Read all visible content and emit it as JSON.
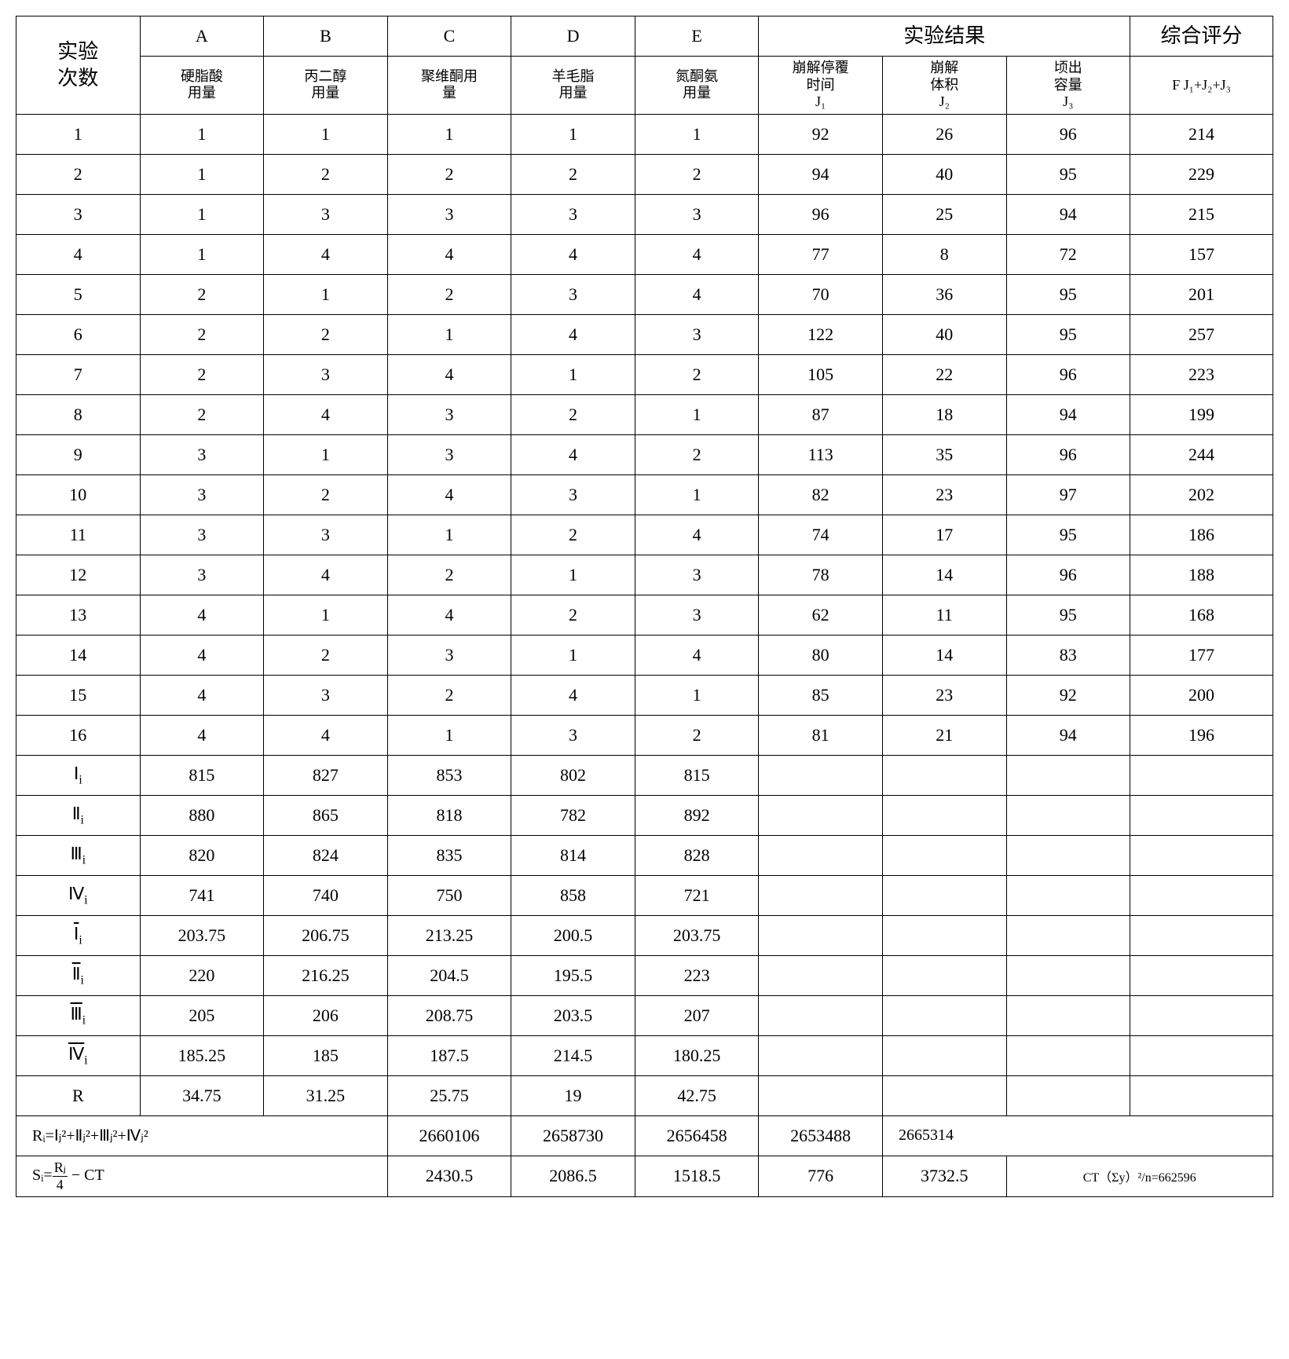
{
  "headers": {
    "run": "实验\n次数",
    "factors": [
      "A",
      "B",
      "C",
      "D",
      "E"
    ],
    "factor_subs": [
      "硬脂酸\n用量",
      "丙二醇\n用量",
      "聚维酮用\n量",
      "羊毛脂\n用量",
      "氮酮氨\n用量"
    ],
    "results_title": "实验结果",
    "result_subs": [
      "崩解停覆\n时间\nJ₁",
      "崩解\n体积\nJ₂",
      "顷出\n容量\nJ₃"
    ],
    "score_title": "综合评分",
    "score_sub": "F J₁+J₂+J₃"
  },
  "rows": [
    {
      "run": "1",
      "f": [
        "1",
        "1",
        "1",
        "1",
        "1"
      ],
      "r": [
        "92",
        "26",
        "96"
      ],
      "score": "214"
    },
    {
      "run": "2",
      "f": [
        "1",
        "2",
        "2",
        "2",
        "2"
      ],
      "r": [
        "94",
        "40",
        "95"
      ],
      "score": "229"
    },
    {
      "run": "3",
      "f": [
        "1",
        "3",
        "3",
        "3",
        "3"
      ],
      "r": [
        "96",
        "25",
        "94"
      ],
      "score": "215"
    },
    {
      "run": "4",
      "f": [
        "1",
        "4",
        "4",
        "4",
        "4"
      ],
      "r": [
        "77",
        "8",
        "72"
      ],
      "score": "157"
    },
    {
      "run": "5",
      "f": [
        "2",
        "1",
        "2",
        "3",
        "4"
      ],
      "r": [
        "70",
        "36",
        "95"
      ],
      "score": "201"
    },
    {
      "run": "6",
      "f": [
        "2",
        "2",
        "1",
        "4",
        "3"
      ],
      "r": [
        "122",
        "40",
        "95"
      ],
      "score": "257"
    },
    {
      "run": "7",
      "f": [
        "2",
        "3",
        "4",
        "1",
        "2"
      ],
      "r": [
        "105",
        "22",
        "96"
      ],
      "score": "223"
    },
    {
      "run": "8",
      "f": [
        "2",
        "4",
        "3",
        "2",
        "1"
      ],
      "r": [
        "87",
        "18",
        "94"
      ],
      "score": "199"
    },
    {
      "run": "9",
      "f": [
        "3",
        "1",
        "3",
        "4",
        "2"
      ],
      "r": [
        "113",
        "35",
        "96"
      ],
      "score": "244"
    },
    {
      "run": "10",
      "f": [
        "3",
        "2",
        "4",
        "3",
        "1"
      ],
      "r": [
        "82",
        "23",
        "97"
      ],
      "score": "202"
    },
    {
      "run": "11",
      "f": [
        "3",
        "3",
        "1",
        "2",
        "4"
      ],
      "r": [
        "74",
        "17",
        "95"
      ],
      "score": "186"
    },
    {
      "run": "12",
      "f": [
        "3",
        "4",
        "2",
        "1",
        "3"
      ],
      "r": [
        "78",
        "14",
        "96"
      ],
      "score": "188"
    },
    {
      "run": "13",
      "f": [
        "4",
        "1",
        "4",
        "2",
        "3"
      ],
      "r": [
        "62",
        "11",
        "95"
      ],
      "score": "168"
    },
    {
      "run": "14",
      "f": [
        "4",
        "2",
        "3",
        "1",
        "4"
      ],
      "r": [
        "80",
        "14",
        "83"
      ],
      "score": "177"
    },
    {
      "run": "15",
      "f": [
        "4",
        "3",
        "2",
        "4",
        "1"
      ],
      "r": [
        "85",
        "23",
        "92"
      ],
      "score": "200"
    },
    {
      "run": "16",
      "f": [
        "4",
        "4",
        "1",
        "3",
        "2"
      ],
      "r": [
        "81",
        "21",
        "94"
      ],
      "score": "196"
    }
  ],
  "summary_labels": {
    "I": "Ⅰᵢ",
    "II": "Ⅱᵢ",
    "III": "Ⅲᵢ",
    "IV": "Ⅳᵢ",
    "Ibar": "Ⅰ̄ᵢ",
    "IIbar": "Ⅱ̄ᵢ",
    "IIIbar": "Ⅲ̄ᵢ",
    "IVbar": "Ⅳ̄ᵢ",
    "R": "R"
  },
  "summary": {
    "I": [
      "815",
      "827",
      "853",
      "802",
      "815"
    ],
    "II": [
      "880",
      "865",
      "818",
      "782",
      "892"
    ],
    "III": [
      "820",
      "824",
      "835",
      "814",
      "828"
    ],
    "IV": [
      "741",
      "740",
      "750",
      "858",
      "721"
    ],
    "Ibar": [
      "203.75",
      "206.75",
      "213.25",
      "200.5",
      "203.75"
    ],
    "IIbar": [
      "220",
      "216.25",
      "204.5",
      "195.5",
      "223"
    ],
    "IIIbar": [
      "205",
      "206",
      "208.75",
      "203.5",
      "207"
    ],
    "IVbar": [
      "185.25",
      "185",
      "187.5",
      "214.5",
      "180.25"
    ],
    "R": [
      "34.75",
      "31.25",
      "25.75",
      "19",
      "42.75"
    ]
  },
  "bottom": {
    "Ri_formula": "Rᵢ=Ⅰⱼ²+Ⅱⱼ²+Ⅲⱼ²+Ⅳⱼ²",
    "Ri_vals": [
      "2660106",
      "2658730",
      "2656458",
      "2653488",
      "2665314"
    ],
    "Si_formula_pre": "Sᵢ=",
    "Si_frac_num": "Rⱼ",
    "Si_frac_den": "4",
    "Si_formula_post": " − CT",
    "Si_vals": [
      "2430.5",
      "2086.5",
      "1518.5",
      "776",
      "3732.5"
    ],
    "CT_text": "CT（Σy）²/n=662596"
  }
}
